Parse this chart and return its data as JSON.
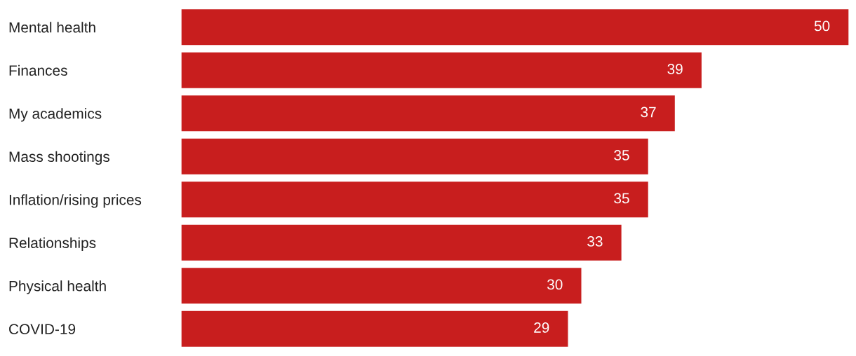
{
  "chart_data": {
    "type": "bar",
    "orientation": "horizontal",
    "categories": [
      "Mental health",
      "Finances",
      "My academics",
      "Mass shootings",
      "Inflation/rising prices",
      "Relationships",
      "Physical health",
      "COVID-19"
    ],
    "values": [
      50,
      39,
      37,
      35,
      35,
      33,
      30,
      29
    ],
    "color": "#c81e1e",
    "data_labels": true,
    "grid": false,
    "legend": false
  }
}
